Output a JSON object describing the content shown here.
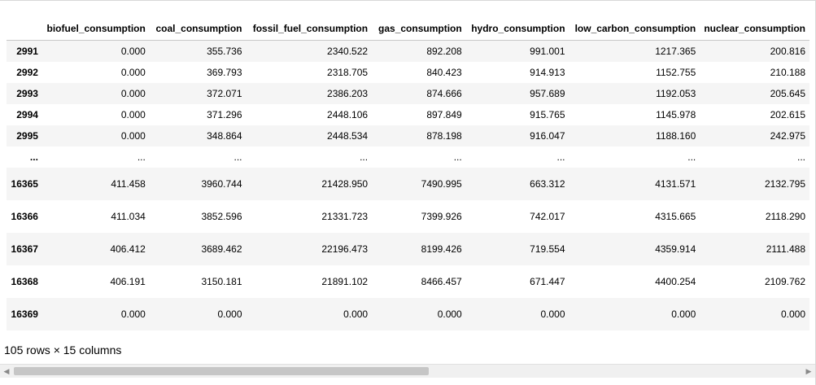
{
  "table": {
    "columns": [
      "",
      "biofuel_consumption",
      "coal_consumption",
      "fossil_fuel_consumption",
      "gas_consumption",
      "hydro_consumption",
      "low_carbon_consumption",
      "nuclear_consumption"
    ],
    "rows": [
      {
        "index": "2991",
        "values": [
          "0.000",
          "355.736",
          "2340.522",
          "892.208",
          "991.001",
          "1217.365",
          "200.816"
        ]
      },
      {
        "index": "2992",
        "values": [
          "0.000",
          "369.793",
          "2318.705",
          "840.423",
          "914.913",
          "1152.755",
          "210.188"
        ]
      },
      {
        "index": "2993",
        "values": [
          "0.000",
          "372.071",
          "2386.203",
          "874.666",
          "957.689",
          "1192.053",
          "205.645"
        ]
      },
      {
        "index": "2994",
        "values": [
          "0.000",
          "371.296",
          "2448.106",
          "897.849",
          "915.765",
          "1145.978",
          "202.615"
        ]
      },
      {
        "index": "2995",
        "values": [
          "0.000",
          "348.864",
          "2448.534",
          "878.198",
          "916.047",
          "1188.160",
          "242.975"
        ]
      },
      {
        "index": "...",
        "values": [
          "...",
          "...",
          "...",
          "...",
          "...",
          "...",
          "..."
        ]
      },
      {
        "index": "16365",
        "values": [
          "411.458",
          "3960.744",
          "21428.950",
          "7490.995",
          "663.312",
          "4131.571",
          "2132.795"
        ]
      },
      {
        "index": "16366",
        "values": [
          "411.034",
          "3852.596",
          "21331.723",
          "7399.926",
          "742.017",
          "4315.665",
          "2118.290"
        ]
      },
      {
        "index": "16367",
        "values": [
          "406.412",
          "3689.462",
          "22196.473",
          "8199.426",
          "719.554",
          "4359.914",
          "2111.488"
        ]
      },
      {
        "index": "16368",
        "values": [
          "406.191",
          "3150.181",
          "21891.102",
          "8466.457",
          "671.447",
          "4400.254",
          "2109.762"
        ]
      },
      {
        "index": "16369",
        "values": [
          "0.000",
          "0.000",
          "0.000",
          "0.000",
          "0.000",
          "0.000",
          "0.000"
        ]
      }
    ]
  },
  "footer": {
    "shape_text": "105 rows × 15 columns"
  },
  "scrollbar": {
    "left_arrow": "◀",
    "right_arrow": "▶"
  }
}
